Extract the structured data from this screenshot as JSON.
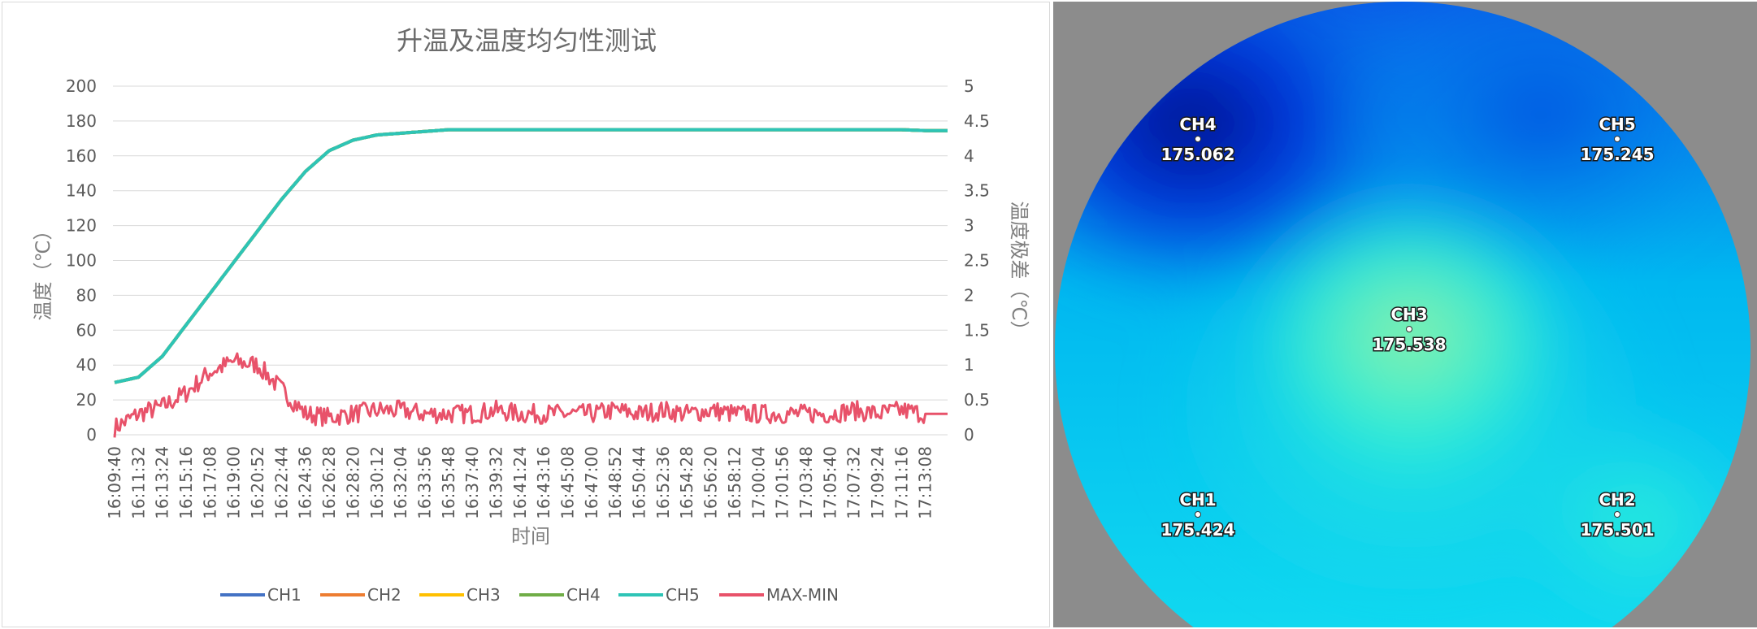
{
  "chart_data": {
    "type": "line",
    "title": "升温及温度均匀性测试",
    "xlabel": "时间",
    "ylabel_left": "温度（℃）",
    "ylabel_right": "温度极差（℃）",
    "ylim_left": [
      0,
      200
    ],
    "ylim_right": [
      0,
      5
    ],
    "yticks_left": [
      "0",
      "20",
      "40",
      "60",
      "80",
      "100",
      "120",
      "140",
      "160",
      "180",
      "200"
    ],
    "yticks_right": [
      "0",
      "0.5",
      "1",
      "1.5",
      "2",
      "2.5",
      "3",
      "3.5",
      "4",
      "4.5",
      "5"
    ],
    "x_ticks": [
      "16:09:40",
      "16:11:32",
      "16:13:24",
      "16:15:16",
      "16:17:08",
      "16:19:00",
      "16:20:52",
      "16:22:44",
      "16:24:36",
      "16:26:28",
      "16:28:20",
      "16:30:12",
      "16:32:04",
      "16:33:56",
      "16:35:48",
      "16:37:40",
      "16:39:32",
      "16:41:24",
      "16:43:16",
      "16:45:08",
      "16:47:00",
      "16:48:52",
      "16:50:44",
      "16:52:36",
      "16:54:28",
      "16:56:20",
      "16:58:12",
      "17:00:04",
      "17:01:56",
      "17:03:48",
      "17:05:40",
      "17:07:32",
      "17:09:24",
      "17:11:16",
      "17:13:08"
    ],
    "grid": true,
    "legend_position": "bottom",
    "series": [
      {
        "name": "CH1",
        "axis": "left",
        "color": "#4472c4",
        "values": [
          30,
          33,
          45,
          63,
          81,
          99,
          117,
          135,
          151,
          163,
          169,
          172,
          173,
          174,
          175,
          175,
          175,
          175,
          175,
          175,
          175,
          175,
          175,
          175,
          175,
          175,
          175,
          175,
          175,
          175,
          175,
          175,
          175,
          175,
          174.5
        ]
      },
      {
        "name": "CH2",
        "axis": "left",
        "color": "#ed7d31",
        "values": [
          30,
          33,
          45,
          63,
          81,
          99,
          117,
          135,
          151,
          163,
          169,
          172,
          173,
          174,
          175,
          175,
          175,
          175,
          175,
          175,
          175,
          175,
          175,
          175,
          175,
          175,
          175,
          175,
          175,
          175,
          175,
          175,
          175,
          175,
          174.5
        ]
      },
      {
        "name": "CH3",
        "axis": "left",
        "color": "#ffc000",
        "values": [
          30,
          33,
          45,
          63,
          81,
          99,
          117,
          135,
          151,
          163,
          169,
          172,
          173,
          174,
          175,
          175,
          175,
          175,
          175,
          175,
          175,
          175,
          175,
          175,
          175,
          175,
          175,
          175,
          175,
          175,
          175,
          175,
          175,
          175,
          174.5
        ]
      },
      {
        "name": "CH4",
        "axis": "left",
        "color": "#70ad47",
        "values": [
          30,
          33,
          45,
          63,
          81,
          99,
          117,
          135,
          151,
          163,
          169,
          172,
          173,
          174,
          175,
          175,
          175,
          175,
          175,
          175,
          175,
          175,
          175,
          175,
          175,
          175,
          175,
          175,
          175,
          175,
          175,
          175,
          175,
          175,
          174.5
        ]
      },
      {
        "name": "CH5",
        "axis": "left",
        "color": "#2ec4b6",
        "values": [
          30,
          33,
          45,
          63,
          81,
          99,
          117,
          135,
          151,
          163,
          169,
          172,
          173,
          174,
          175,
          175,
          175,
          175,
          175,
          175,
          175,
          175,
          175,
          175,
          175,
          175,
          175,
          175,
          175,
          175,
          175,
          175,
          175,
          175,
          174.5
        ]
      },
      {
        "name": "MAX-MIN",
        "axis": "right",
        "color": "#e8526a",
        "values": [
          0.1,
          0.3,
          0.4,
          0.6,
          0.9,
          1.05,
          1.0,
          0.65,
          0.3,
          0.25,
          0.3,
          0.35,
          0.35,
          0.3,
          0.3,
          0.3,
          0.35,
          0.3,
          0.3,
          0.3,
          0.3,
          0.35,
          0.3,
          0.35,
          0.3,
          0.35,
          0.3,
          0.3,
          0.3,
          0.3,
          0.3,
          0.35,
          0.3,
          0.35,
          0.3
        ]
      }
    ]
  },
  "map": {
    "colors": {
      "background": "#8c8c8c",
      "cold": "#0018c8",
      "mid": "#00b4f0",
      "warm": "#34f0d0",
      "hot": "#8ef0a8"
    },
    "probes": [
      {
        "name": "CH4",
        "value": "175.062"
      },
      {
        "name": "CH5",
        "value": "175.245"
      },
      {
        "name": "CH3",
        "value": "175.538"
      },
      {
        "name": "CH1",
        "value": "175.424"
      },
      {
        "name": "CH2",
        "value": "175.501"
      }
    ]
  }
}
